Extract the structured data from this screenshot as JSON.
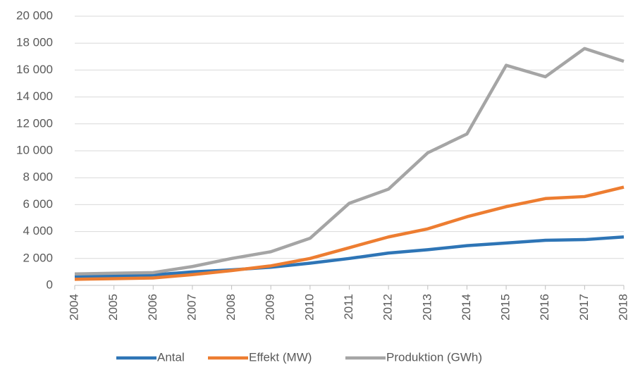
{
  "chart_data": {
    "type": "line",
    "categories": [
      "2004",
      "2005",
      "2006",
      "2007",
      "2008",
      "2009",
      "2010",
      "2011",
      "2012",
      "2013",
      "2014",
      "2015",
      "2016",
      "2017",
      "2018"
    ],
    "series": [
      {
        "name": "Antal",
        "color": "#2e75b6",
        "values": [
          630,
          700,
          780,
          1000,
          1150,
          1350,
          1650,
          2000,
          2400,
          2650,
          2950,
          3150,
          3350,
          3400,
          3600
        ]
      },
      {
        "name": "Effekt (MW)",
        "color": "#ed7d31",
        "values": [
          450,
          500,
          550,
          800,
          1100,
          1450,
          2000,
          2800,
          3600,
          4200,
          5100,
          5850,
          6450,
          6600,
          7300
        ]
      },
      {
        "name": "Produktion (GWh)",
        "color": "#a5a5a5",
        "values": [
          850,
          900,
          950,
          1400,
          2000,
          2500,
          3500,
          6100,
          7150,
          9850,
          11250,
          16350,
          15500,
          17600,
          16650
        ]
      }
    ],
    "ylim": [
      0,
      20000
    ],
    "yticks": [
      0,
      {
        "value": 2000,
        "label": "2 000"
      },
      {
        "value": 4000,
        "label": "4 000"
      },
      {
        "value": 6000,
        "label": "6 000"
      },
      {
        "value": 8000,
        "label": "8 000"
      },
      {
        "value": 10000,
        "label": "10 000"
      },
      {
        "value": 12000,
        "label": "12 000"
      },
      {
        "value": 14000,
        "label": "14 000"
      },
      {
        "value": 16000,
        "label": "16 000"
      },
      {
        "value": 18000,
        "label": "18 000"
      },
      {
        "value": 20000,
        "label": "20 000"
      }
    ],
    "grid": true,
    "legend": "bottom"
  }
}
